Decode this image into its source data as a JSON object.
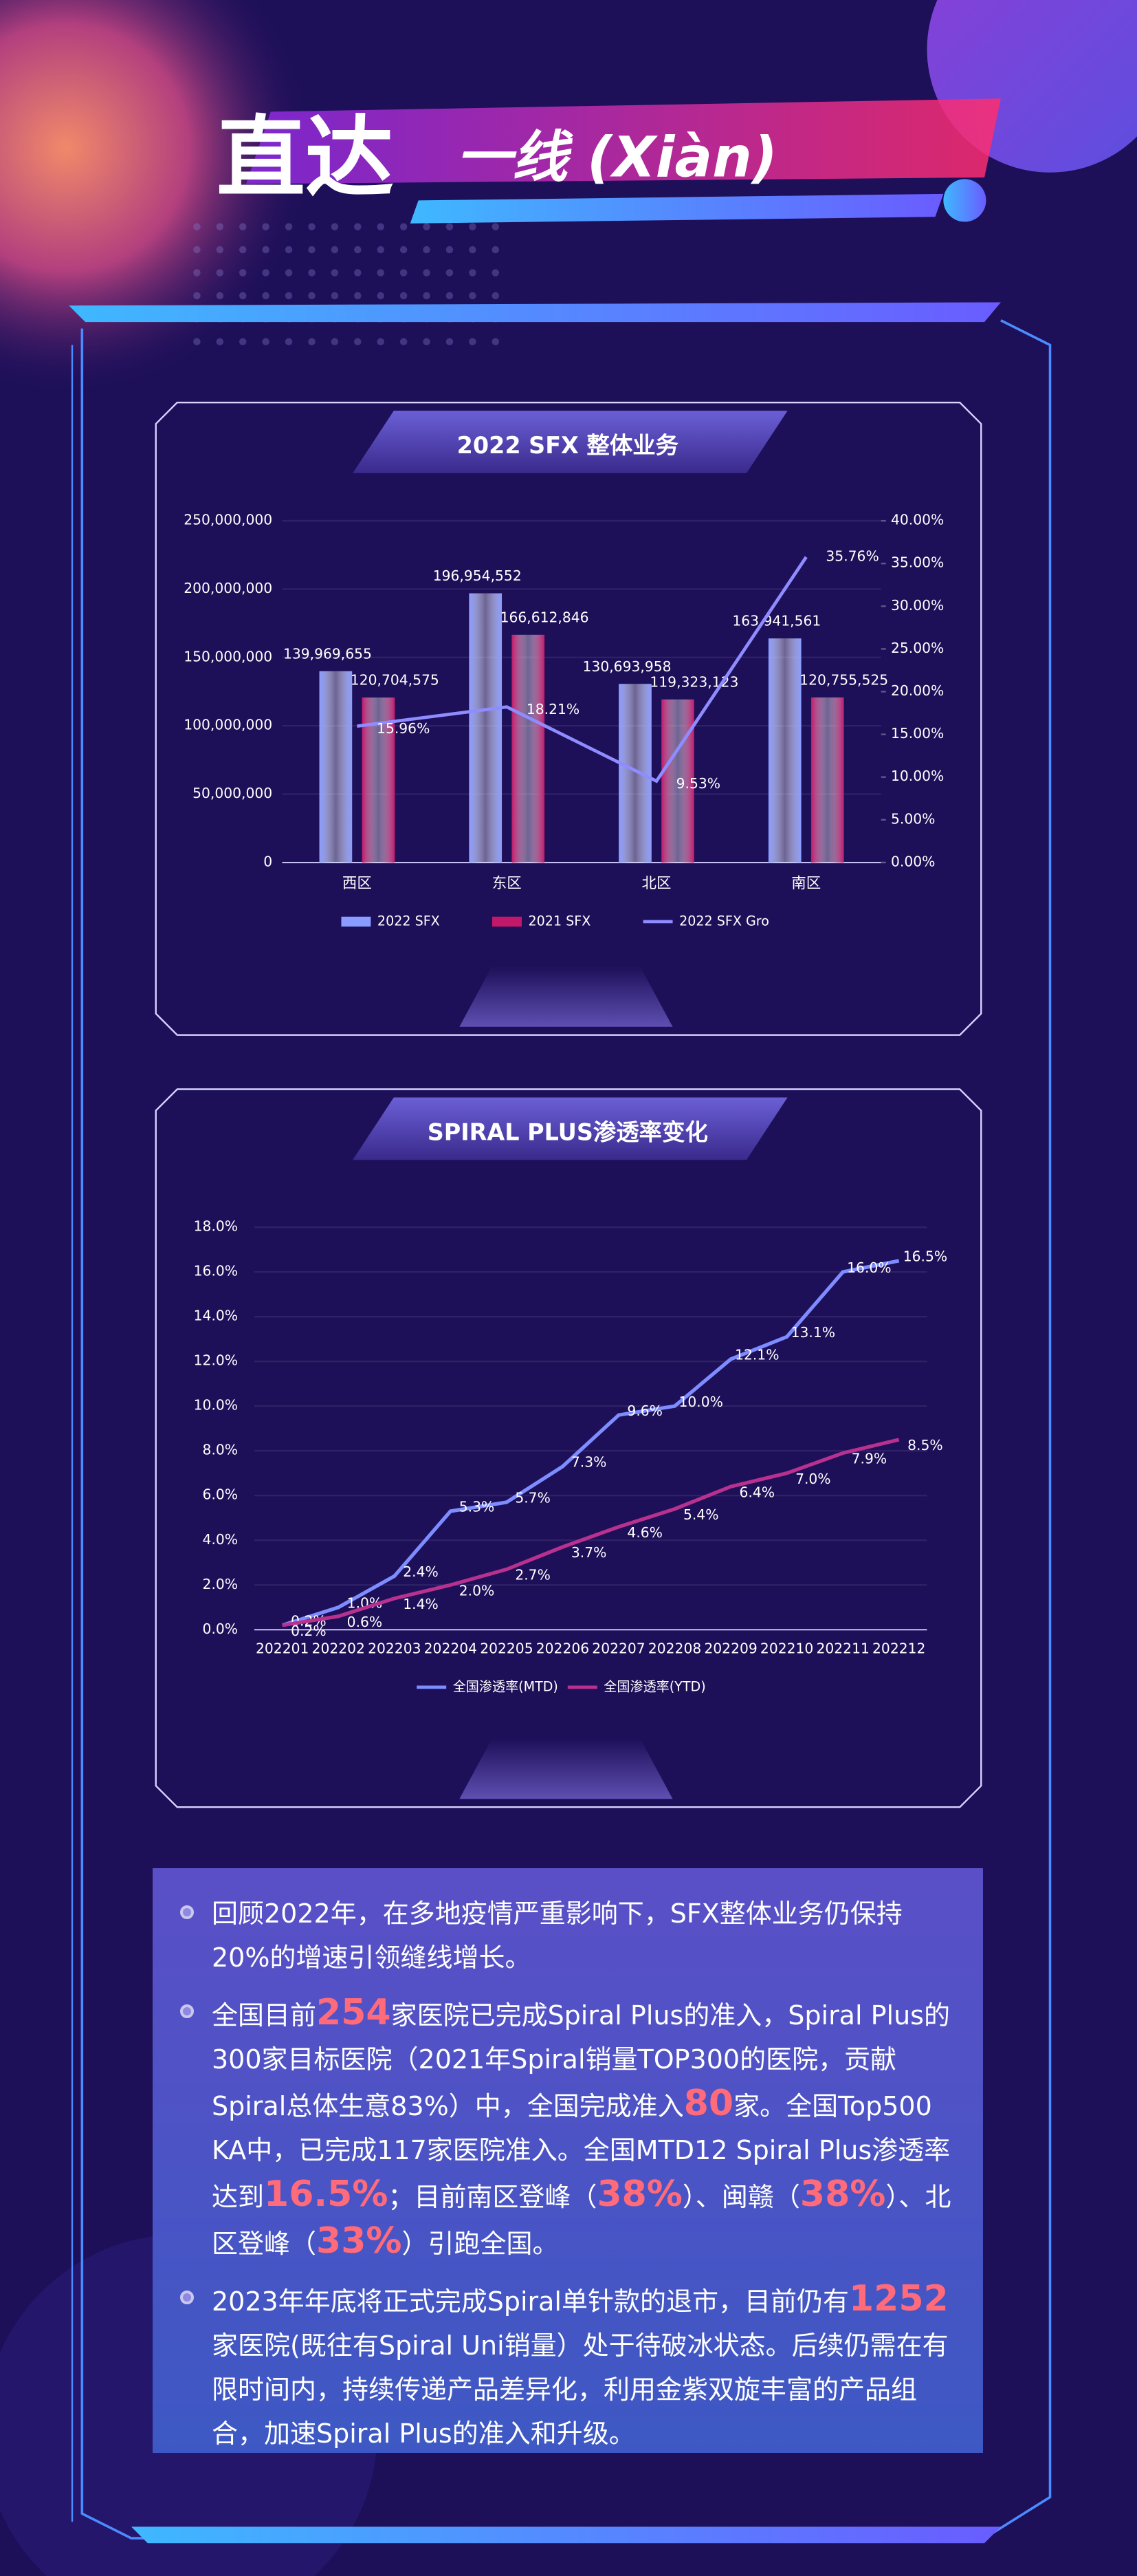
{
  "header": {
    "title": "直达",
    "subtitle": "一线 (Xiàn)"
  },
  "chart_data": [
    {
      "type": "bar",
      "title": "2022 SFX 整体业务",
      "categories": [
        "西区",
        "东区",
        "北区",
        "南区"
      ],
      "series": [
        {
          "name": "2022 SFX",
          "color": "#8a9cff",
          "values": [
            139969655,
            196954552,
            130693958,
            163941561
          ],
          "value_labels": [
            "139,969,655",
            "196,954,552",
            "130,693,958",
            "163,941,561"
          ]
        },
        {
          "name": "2021 SFX",
          "color": "#c2186a",
          "values": [
            120704575,
            166612846,
            119323123,
            120755525
          ],
          "value_labels": [
            "120,704,575",
            "166,612,846",
            "119,323,123",
            "120,755,525"
          ]
        },
        {
          "name": "2022 SFX Gro",
          "type": "line",
          "axis": "y2",
          "color": "#8e8cff",
          "values": [
            15.96,
            18.21,
            9.53,
            35.76
          ],
          "value_labels": [
            "15.96%",
            "18.21%",
            "9.53%",
            "35.76%"
          ]
        }
      ],
      "ylim": [
        0,
        250000000
      ],
      "yticks": [
        0,
        {
          "value": 50000000,
          "label": "50,000,000"
        },
        {
          "value": 100000000,
          "label": "100,000,000"
        },
        {
          "value": 150000000,
          "label": "150,000,000"
        },
        {
          "value": 200000000,
          "label": "200,000,000"
        },
        {
          "value": 250000000,
          "label": "250,000,000"
        }
      ],
      "y2lim": [
        0,
        40
      ],
      "y2ticks": [
        {
          "value": 0,
          "label": "0.00%"
        },
        {
          "value": 5,
          "label": "5.00%"
        },
        {
          "value": 10,
          "label": "10.00%"
        },
        {
          "value": 15,
          "label": "15.00%"
        },
        {
          "value": 20,
          "label": "20.00%"
        },
        {
          "value": 25,
          "label": "25.00%"
        },
        {
          "value": 30,
          "label": "30.00%"
        },
        {
          "value": 35,
          "label": "35.00%"
        },
        {
          "value": 40,
          "label": "40.00%"
        }
      ],
      "legend": "bottom"
    },
    {
      "type": "line",
      "title": "SPIRAL PLUS渗透率变化",
      "categories": [
        "202201",
        "202202",
        "202203",
        "202204",
        "202205",
        "202206",
        "202207",
        "202208",
        "202209",
        "202210",
        "202211",
        "202212"
      ],
      "series": [
        {
          "name": "全国渗透率(MTD)",
          "color": "#7d8cff",
          "values": [
            0.2,
            1.0,
            2.4,
            5.3,
            5.7,
            7.3,
            9.6,
            10.0,
            12.1,
            13.1,
            16.0,
            16.5
          ],
          "value_labels": [
            "0.2%",
            "1.0%",
            "2.4%",
            "5.3%",
            "5.7%",
            "7.3%",
            "9.6%",
            "10.0%",
            "12.1%",
            "13.1%",
            "16.0%",
            "16.5%"
          ]
        },
        {
          "name": "全国渗透率(YTD)",
          "color": "#b8318f",
          "values": [
            0.2,
            0.6,
            1.4,
            2.0,
            2.7,
            3.7,
            4.6,
            5.4,
            6.4,
            7.0,
            7.9,
            8.5
          ],
          "value_labels": [
            "0.2%",
            "0.6%",
            "1.4%",
            "2.0%",
            "2.7%",
            "3.7%",
            "4.6%",
            "5.4%",
            "6.4%",
            "7.0%",
            "7.9%",
            "8.5%"
          ]
        }
      ],
      "ylim": [
        0,
        18
      ],
      "yticks": [
        {
          "value": 0,
          "label": "0.0%"
        },
        {
          "value": 2,
          "label": "2.0%"
        },
        {
          "value": 4,
          "label": "4.0%"
        },
        {
          "value": 6,
          "label": "6.0%"
        },
        {
          "value": 8,
          "label": "8.0%"
        },
        {
          "value": 10,
          "label": "10.0%"
        },
        {
          "value": 12,
          "label": "12.0%"
        },
        {
          "value": 14,
          "label": "14.0%"
        },
        {
          "value": 16,
          "label": "16.0%"
        },
        {
          "value": 18,
          "label": "18.0%"
        }
      ],
      "legend": "bottom"
    }
  ],
  "notes": [
    {
      "parts": [
        "回顾2022年，在多地疫情严重影响下，SFX整体业务仍保持20%的增速引领缝线增长。"
      ]
    },
    {
      "parts": [
        "全国目前",
        "254",
        "家医院已完成Spiral Plus的准入，Spiral Plus的300家目标医院（2021年Spiral销量TOP300的医院，贡献Spiral总体生意83%）中，全国完成准入",
        "80",
        "家。全国Top500 KA中，已完成117家医院准入。全国MTD12 Spiral Plus渗透率达到",
        "16.5%",
        "；目前南区登峰（",
        "38%",
        "）、闽赣（",
        "38%",
        "）、北区登峰（",
        "33%",
        "）引跑全国。"
      ]
    },
    {
      "parts": [
        "2023年年底将正式完成Spiral单针款的退市，目前仍有",
        "1252",
        "家医院(既往有Spiral Uni销量）处于待破冰状态。后续仍需在有限时间内，持续传递产品差异化，利用金紫双旋丰富的产品组合，加速Spiral Plus的准入和升级。"
      ]
    }
  ]
}
